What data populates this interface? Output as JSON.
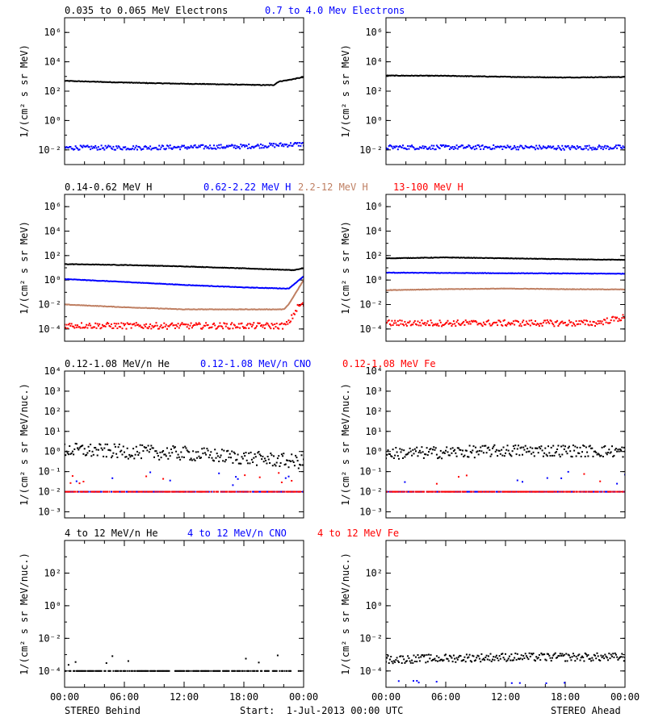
{
  "footer": {
    "left_label": "STEREO Behind",
    "center_label": "Start:  1-Jul-2013 00:00 UTC",
    "right_label": "STEREO Ahead"
  },
  "colors": {
    "black": "#000000",
    "blue": "#0000ff",
    "tan": "#bf7f62",
    "red": "#ff0000"
  },
  "chart_data": [
    {
      "type": "scatter",
      "row": 1,
      "panel": "STEREO Behind",
      "ylabel": "1/(cm² s sr MeV)",
      "yscale": "log",
      "ylim": [
        0.001,
        10000000
      ],
      "yticks": [
        0.01,
        1,
        100,
        10000,
        1000000
      ],
      "xlim": [
        0,
        24
      ],
      "xticks": [
        "00:00",
        "06:00",
        "12:00",
        "18:00",
        "00:00"
      ],
      "legend": [
        {
          "text": "0.035 to 0.065 MeV Electrons",
          "color": "#000000"
        },
        {
          "text": "0.7 to 4.0 Mev Electrons",
          "color": "#0000ff"
        }
      ],
      "series": [
        {
          "name": "0.035 to 0.065 MeV Electrons",
          "color": "#000000",
          "style": "line",
          "x": [
            0,
            4,
            8,
            12,
            16,
            20,
            21,
            21.5,
            22.5,
            24
          ],
          "y": [
            500,
            420,
            360,
            320,
            290,
            260,
            260,
            450,
            580,
            900
          ]
        },
        {
          "name": "0.7 to 4.0 Mev Electrons",
          "color": "#0000ff",
          "style": "dots",
          "x": [
            0,
            6,
            12,
            18,
            24
          ],
          "y": [
            0.014,
            0.014,
            0.015,
            0.017,
            0.025
          ],
          "scatter": 0.15
        }
      ]
    },
    {
      "type": "scatter",
      "row": 1,
      "panel": "STEREO Ahead",
      "ylabel": "1/(cm² s sr MeV)",
      "yscale": "log",
      "ylim": [
        0.001,
        10000000
      ],
      "yticks": [
        0.01,
        1,
        100,
        10000,
        1000000
      ],
      "xlim": [
        0,
        24
      ],
      "xticks": [
        "00:00",
        "06:00",
        "12:00",
        "18:00",
        "00:00"
      ],
      "series": [
        {
          "name": "0.035 to 0.065 MeV Electrons",
          "color": "#000000",
          "style": "line",
          "x": [
            0,
            6,
            12,
            18,
            24
          ],
          "y": [
            1150,
            1100,
            950,
            850,
            930
          ]
        },
        {
          "name": "0.7 to 4.0 Mev Electrons",
          "color": "#0000ff",
          "style": "dots",
          "x": [
            0,
            6,
            12,
            18,
            24
          ],
          "y": [
            0.015,
            0.015,
            0.015,
            0.014,
            0.015
          ],
          "scatter": 0.15
        }
      ]
    },
    {
      "type": "scatter",
      "row": 2,
      "panel": "STEREO Behind",
      "ylabel": "1/(cm² s sr MeV)",
      "yscale": "log",
      "ylim": [
        1e-05,
        10000000
      ],
      "yticks": [
        0.0001,
        0.01,
        1,
        100,
        10000,
        1000000
      ],
      "xlim": [
        0,
        24
      ],
      "xticks": [
        "00:00",
        "06:00",
        "12:00",
        "18:00",
        "00:00"
      ],
      "legend": [
        {
          "text": "0.14-0.62 MeV H",
          "color": "#000000"
        },
        {
          "text": "0.62-2.22 MeV H",
          "color": "#0000ff"
        },
        {
          "text": "2.2-12 MeV H",
          "color": "#bf7f62"
        },
        {
          "text": "13-100 MeV H",
          "color": "#ff0000"
        }
      ],
      "series": [
        {
          "name": "0.14-0.62 MeV H",
          "color": "#000000",
          "style": "line",
          "x": [
            0,
            6,
            12,
            18,
            23,
            24
          ],
          "y": [
            20,
            17,
            13,
            9,
            6.5,
            9
          ]
        },
        {
          "name": "0.62-2.22 MeV H",
          "color": "#0000ff",
          "style": "line",
          "x": [
            0,
            6,
            12,
            18,
            22.5,
            24
          ],
          "y": [
            1.2,
            0.7,
            0.4,
            0.25,
            0.2,
            2
          ]
        },
        {
          "name": "2.2-12 MeV H",
          "color": "#bf7f62",
          "style": "line",
          "x": [
            0,
            6,
            12,
            18,
            22,
            22.5,
            24
          ],
          "y": [
            0.01,
            0.006,
            0.004,
            0.004,
            0.004,
            0.01,
            1
          ]
        },
        {
          "name": "13-100 MeV H",
          "color": "#ff0000",
          "style": "dots",
          "x": [
            0,
            6,
            12,
            18,
            22,
            22.5,
            23.5,
            24
          ],
          "y": [
            0.0002,
            0.00018,
            0.00018,
            0.00018,
            0.00018,
            0.0003,
            0.008,
            0.01
          ],
          "scatter": 0.25
        }
      ]
    },
    {
      "type": "scatter",
      "row": 2,
      "panel": "STEREO Ahead",
      "ylabel": "1/(cm² s sr MeV)",
      "yscale": "log",
      "ylim": [
        1e-05,
        10000000
      ],
      "yticks": [
        0.0001,
        0.01,
        1,
        100,
        10000,
        1000000
      ],
      "xlim": [
        0,
        24
      ],
      "xticks": [
        "00:00",
        "06:00",
        "12:00",
        "18:00",
        "00:00"
      ],
      "series": [
        {
          "name": "0.14-0.62 MeV H",
          "color": "#000000",
          "style": "line",
          "x": [
            0,
            6,
            12,
            18,
            24
          ],
          "y": [
            60,
            70,
            60,
            50,
            45
          ]
        },
        {
          "name": "0.62-2.22 MeV H",
          "color": "#0000ff",
          "style": "line",
          "x": [
            0,
            12,
            24
          ],
          "y": [
            4,
            3.6,
            3.3
          ]
        },
        {
          "name": "2.2-12 MeV H",
          "color": "#bf7f62",
          "style": "line",
          "x": [
            0,
            6,
            12,
            18,
            24
          ],
          "y": [
            0.15,
            0.18,
            0.2,
            0.18,
            0.17
          ]
        },
        {
          "name": "13-100 MeV H",
          "color": "#ff0000",
          "style": "dots",
          "x": [
            0,
            12,
            21,
            24
          ],
          "y": [
            0.0003,
            0.0003,
            0.0003,
            0.0009
          ],
          "scatter": 0.25
        }
      ]
    },
    {
      "type": "scatter",
      "row": 3,
      "panel": "STEREO Behind",
      "ylabel": "1/(cm² s sr MeV/nuc.)",
      "yscale": "log",
      "ylim": [
        0.0005,
        10000
      ],
      "yticks": [
        0.001,
        0.01,
        0.1,
        1,
        10,
        100,
        1000,
        10000
      ],
      "xlim": [
        0,
        24
      ],
      "xticks": [
        "00:00",
        "06:00",
        "12:00",
        "18:00",
        "00:00"
      ],
      "legend": [
        {
          "text": "0.12-1.08 MeV/n He",
          "color": "#000000"
        },
        {
          "text": "0.12-1.08 MeV/n CNO",
          "color": "#0000ff"
        },
        {
          "text": "0.12-1.08 MeV Fe",
          "color": "#ff0000"
        }
      ],
      "series": [
        {
          "name": "0.12-1.08 MeV/n He",
          "color": "#000000",
          "style": "dots",
          "x": [
            0,
            6,
            12,
            18,
            24
          ],
          "y": [
            1.2,
            1.0,
            0.8,
            0.5,
            0.3
          ],
          "scatter": 0.35
        },
        {
          "name": "0.12-1.08 MeV/n CNO",
          "color": "#0000ff",
          "style": "floor",
          "x": [
            0,
            24
          ],
          "y": [
            0.01,
            0.01
          ],
          "scatter": 0.05
        },
        {
          "name": "0.12-1.08 MeV Fe",
          "color": "#ff0000",
          "style": "floor",
          "x": [
            0,
            24
          ],
          "y": [
            0.01,
            0.01
          ],
          "scatter": 0.03
        }
      ]
    },
    {
      "type": "scatter",
      "row": 3,
      "panel": "STEREO Ahead",
      "ylabel": "1/(cm² s sr MeV/nuc.)",
      "yscale": "log",
      "ylim": [
        0.0005,
        10000
      ],
      "yticks": [
        0.001,
        0.01,
        0.1,
        1,
        10,
        100,
        1000,
        10000
      ],
      "xlim": [
        0,
        24
      ],
      "xticks": [
        "00:00",
        "06:00",
        "12:00",
        "18:00",
        "00:00"
      ],
      "series": [
        {
          "name": "0.12-1.08 MeV/n He",
          "color": "#000000",
          "style": "dots",
          "x": [
            0,
            6,
            12,
            18,
            24
          ],
          "y": [
            0.8,
            0.9,
            1.1,
            1.1,
            1.0
          ],
          "scatter": 0.3
        },
        {
          "name": "0.12-1.08 MeV/n CNO",
          "color": "#0000ff",
          "style": "floor",
          "x": [
            0,
            24
          ],
          "y": [
            0.01,
            0.01
          ],
          "scatter": 0.05
        },
        {
          "name": "0.12-1.08 MeV Fe",
          "color": "#ff0000",
          "style": "floor",
          "x": [
            0,
            24
          ],
          "y": [
            0.01,
            0.01
          ],
          "scatter": 0.03
        }
      ]
    },
    {
      "type": "scatter",
      "row": 4,
      "panel": "STEREO Behind",
      "ylabel": "1/(cm² s sr MeV/nuc.)",
      "yscale": "log",
      "ylim": [
        1e-05,
        10000
      ],
      "yticks": [
        0.0001,
        0.01,
        1,
        100
      ],
      "xlim": [
        0,
        24
      ],
      "xticks": [
        "00:00",
        "06:00",
        "12:00",
        "18:00",
        "00:00"
      ],
      "legend": [
        {
          "text": "4 to 12 MeV/n He",
          "color": "#000000"
        },
        {
          "text": "4 to 12 MeV/n CNO",
          "color": "#0000ff"
        },
        {
          "text": "4 to 12 MeV Fe",
          "color": "#ff0000"
        }
      ],
      "series": [
        {
          "name": "4 to 12 MeV/n He",
          "color": "#000000",
          "style": "floor",
          "x": [
            0,
            24
          ],
          "y": [
            0.0001,
            0.0001
          ],
          "scatter": 0.3
        }
      ]
    },
    {
      "type": "scatter",
      "row": 4,
      "panel": "STEREO Ahead",
      "ylabel": "1/(cm² s sr MeV/nuc.)",
      "yscale": "log",
      "ylim": [
        1e-05,
        10000
      ],
      "yticks": [
        0.0001,
        0.01,
        1,
        100
      ],
      "xlim": [
        0,
        24
      ],
      "xticks": [
        "00:00",
        "06:00",
        "12:00",
        "18:00",
        "00:00"
      ],
      "series": [
        {
          "name": "4 to 12 MeV/n He",
          "color": "#000000",
          "style": "dots",
          "x": [
            0,
            6,
            12,
            18,
            24
          ],
          "y": [
            0.0005,
            0.0006,
            0.0007,
            0.0007,
            0.0007
          ],
          "scatter": 0.25
        },
        {
          "name": "4 to 12 MeV/n CNO",
          "color": "#0000ff",
          "style": "sparse",
          "x": [
            0,
            24
          ],
          "y": [
            2e-05,
            2e-05
          ],
          "scatter": 0.1
        }
      ]
    }
  ]
}
